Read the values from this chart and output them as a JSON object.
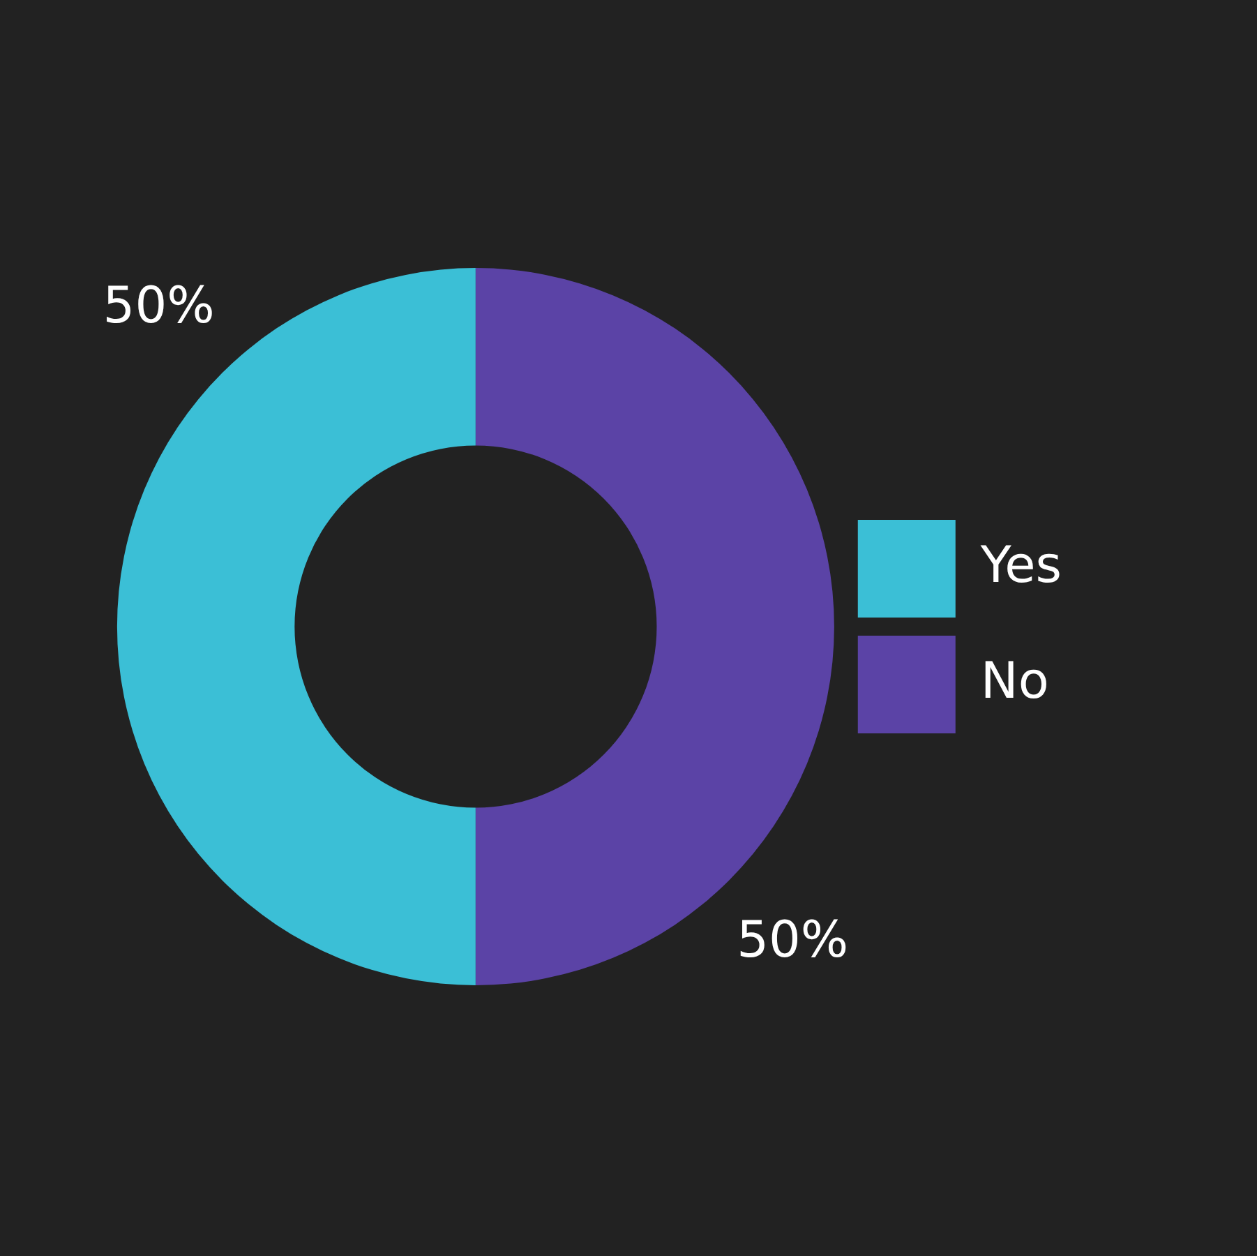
{
  "chart_data": {
    "type": "donut",
    "categories": [
      "Yes",
      "No"
    ],
    "values": [
      50,
      50
    ],
    "colors": [
      "#3bbfd6",
      "#5b43a6"
    ],
    "value_labels": [
      "50%",
      "50%"
    ],
    "legend": "right"
  }
}
